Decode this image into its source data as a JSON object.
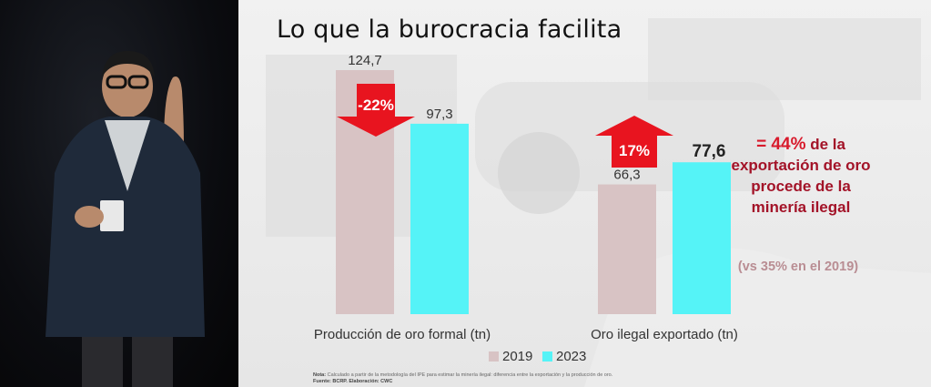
{
  "slide": {
    "title": "Lo que la burocracia facilita",
    "callout_pct": "= 44%",
    "callout_rest": " de la exportación de oro procede de la minería ilegal",
    "callout_sub": "(vs 35% en el 2019)",
    "footnote_note_label": "Nota:",
    "footnote_note": " Calculado a partir de la metodología del IPE para estimar la minería ilegal: diferencia entre la exportación y la producción de oro.",
    "footnote_source": "Fuente: BCRP. Elaboración: CWC"
  },
  "colors": {
    "series_2019": "#d8c3c4",
    "series_2023": "#55f3f7",
    "arrow": "#e8141f"
  },
  "chart_data": {
    "type": "bar",
    "categories": [
      "Producción de oro formal (tn)",
      "Oro ilegal exportado (tn)"
    ],
    "series": [
      {
        "name": "2019",
        "values": [
          124.7,
          66.3
        ],
        "labels": [
          "124,7",
          "66,3"
        ]
      },
      {
        "name": "2023",
        "values": [
          97.3,
          77.6
        ],
        "labels": [
          "97,3",
          "77,6"
        ]
      }
    ],
    "changes": [
      "-22%",
      "17%"
    ],
    "legend_position": "bottom",
    "grid": false,
    "ylim": [
      0,
      124.7
    ]
  }
}
